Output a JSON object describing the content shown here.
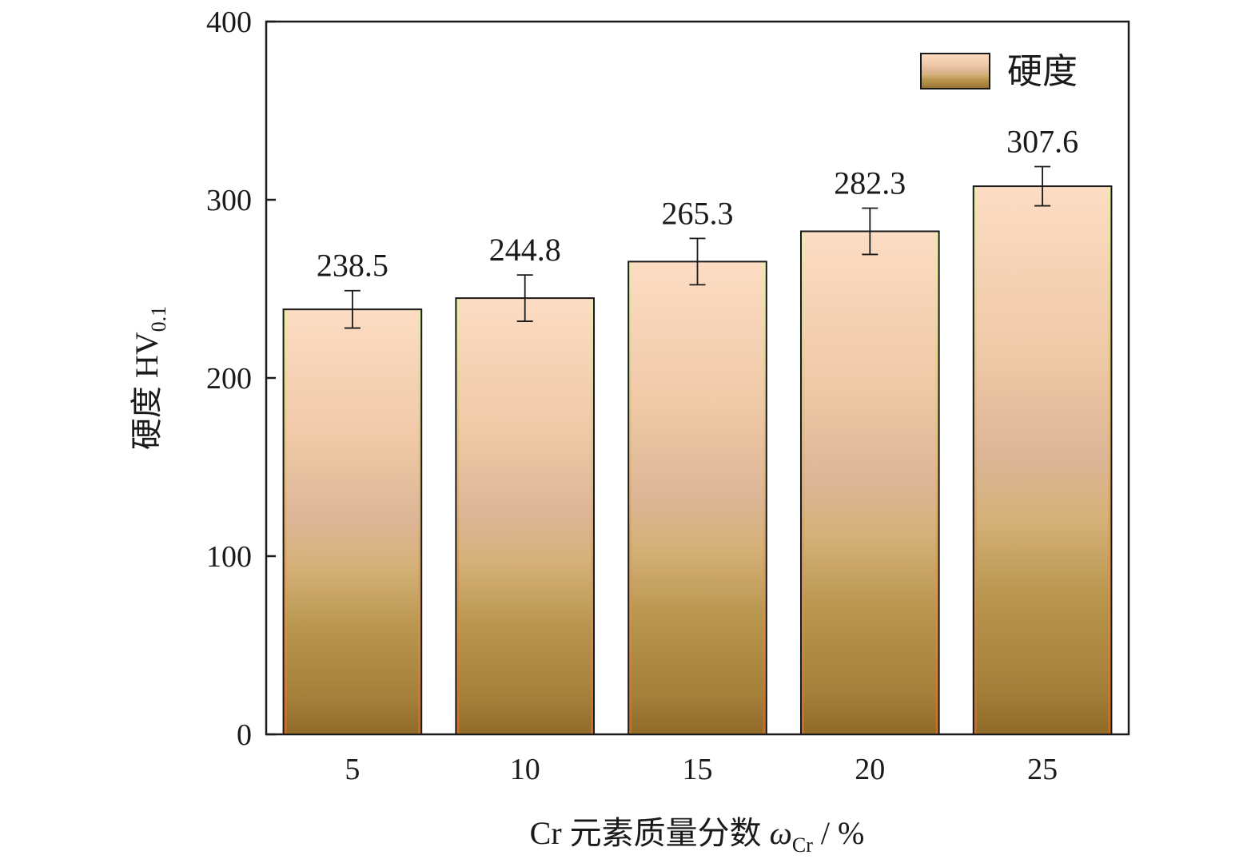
{
  "chart_data": {
    "type": "bar",
    "categories": [
      "5",
      "10",
      "15",
      "20",
      "25"
    ],
    "series": [
      {
        "name": "硬度",
        "values": [
          238.5,
          244.8,
          265.3,
          282.3,
          307.6
        ],
        "errors": [
          10.5,
          13.0,
          13.0,
          13.0,
          11.0
        ]
      }
    ],
    "value_labels": [
      "238.5",
      "244.8",
      "265.3",
      "282.3",
      "307.6"
    ],
    "xlabel": "Cr 元素质量分数 ωCr / %",
    "xlabel_parts": {
      "main": "Cr 元素质量分数 ",
      "symbol": "ω",
      "subscript": "Cr",
      "suffix": " / %"
    },
    "ylabel": "硬度 HV0.1",
    "ylabel_parts": {
      "main": "硬度 HV",
      "subscript": "0.1"
    },
    "ylim": [
      0,
      400
    ],
    "yticks": [
      0,
      100,
      200,
      300,
      400
    ],
    "legend_position": "top-right",
    "grid": false,
    "colors": {
      "bar_top": "#fcdcc2",
      "bar_mid": "#d6b08a",
      "bar_low": "#b0904a",
      "bar_bottom": "#9a7030",
      "bar_edge_left": "#e8f0a0",
      "bar_edge_right": "#d2691e",
      "axis": "#1a1a1a"
    }
  }
}
